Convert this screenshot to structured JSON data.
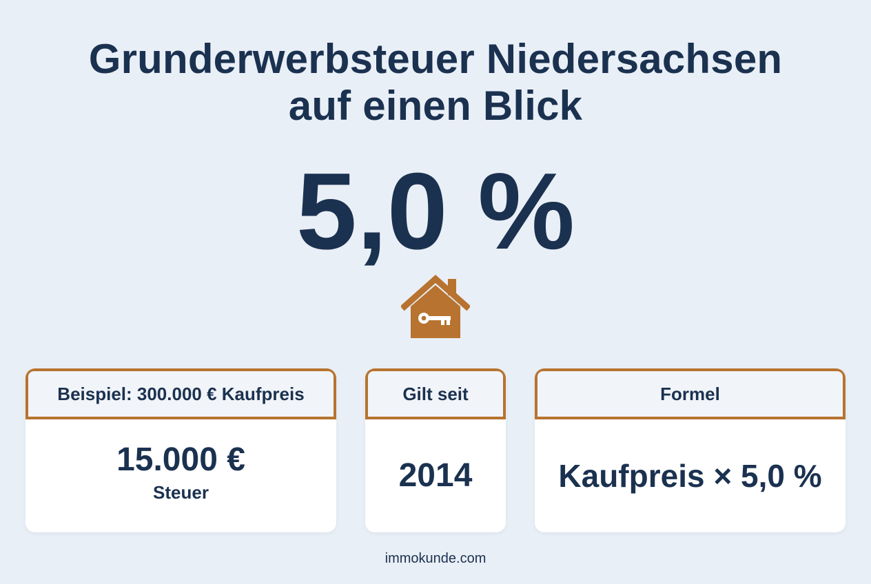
{
  "title": {
    "line1": "Grunderwerbsteuer Niedersachsen",
    "line2": "auf einen Blick"
  },
  "rate": "5,0 %",
  "icon": "house-key-icon",
  "colors": {
    "accent": "#b7732f",
    "text": "#1b3150",
    "background": "#e9eff6"
  },
  "cards": {
    "example": {
      "header": "Beispiel: 300.000 € Kaufpreis",
      "value": "15.000 €",
      "caption": "Steuer"
    },
    "since": {
      "header": "Gilt seit",
      "value": "2014"
    },
    "formula": {
      "header": "Formel",
      "value": "Kaufpreis × 5,0 %"
    }
  },
  "footer": "immokunde.com"
}
